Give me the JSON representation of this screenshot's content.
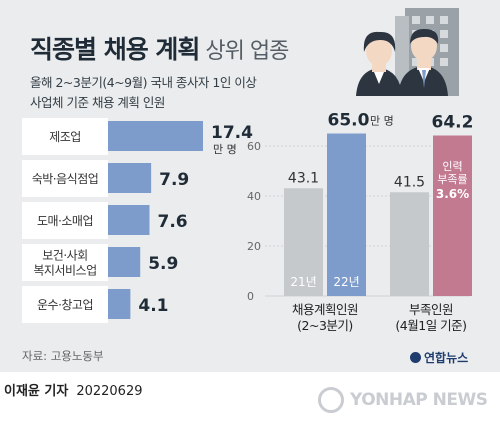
{
  "header": {
    "title_main": "직종별 채용 계획",
    "title_sub": "상위 업종",
    "subtitle_line1": "올해 2~3분기(4~9월) 국내 종사자 1인 이상",
    "subtitle_line2": "사업체 기준 채용 계획 인원"
  },
  "footer": {
    "source": "자료: 고용노동부",
    "reporter": "이재윤 기자",
    "date": "20220629",
    "logo_text": "연합뉴스",
    "watermark": "YONHAP NEWS"
  },
  "colors": {
    "bar_blue": "#7d9bcb",
    "bar_gray": "#c6c9cc",
    "bar_pink": "#c27a90",
    "text_dark": "#1f2b36",
    "panel_bg": "#eaeced"
  },
  "chart_data": [
    {
      "type": "bar",
      "orientation": "horizontal",
      "categories": [
        "제조업",
        "숙박·음식점업",
        "도매·소매업",
        "보건·사회\n복지서비스업",
        "운수·창고업"
      ],
      "values": [
        17.4,
        7.9,
        7.6,
        5.9,
        4.1
      ],
      "value_labels": [
        "17.4",
        "7.9",
        "7.6",
        "5.9",
        "4.1"
      ],
      "unit_label": "만 명",
      "title": "",
      "xlabel": "",
      "ylabel": "",
      "xlim": [
        0,
        17.4
      ]
    },
    {
      "type": "bar",
      "orientation": "vertical",
      "categories": [
        "채용계획인원\n(2~3분기)",
        "부족인원\n(4월1일 기준)"
      ],
      "series": [
        {
          "name": "21년",
          "values": [
            43.1,
            41.5
          ]
        },
        {
          "name": "22년",
          "values": [
            65.0,
            64.2
          ]
        }
      ],
      "value_labels": [
        [
          "43.1",
          "65.0"
        ],
        [
          "41.5",
          "64.2"
        ]
      ],
      "unit_label": "만 명",
      "annotation": {
        "label": "인력\n부족률",
        "value": "3.6%"
      },
      "y_ticks": [
        0,
        20,
        40,
        60
      ],
      "ylim": [
        0,
        65
      ],
      "grid": true,
      "title": "",
      "xlabel": "",
      "ylabel": ""
    }
  ]
}
